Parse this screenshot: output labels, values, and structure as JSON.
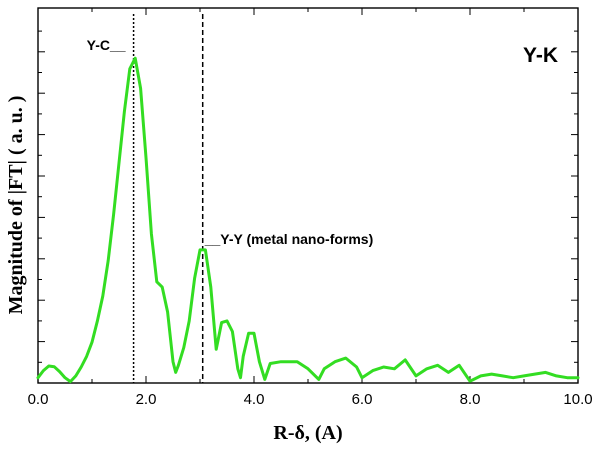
{
  "chart_data": {
    "type": "line",
    "title": "Y-K",
    "xlabel": "R-δ, (A)",
    "ylabel": "Magnitude of |FT| ( a. u. )",
    "xlim": [
      0,
      10
    ],
    "ylim": [
      0,
      1
    ],
    "x_ticks": [
      "0.0",
      "2.0",
      "4.0",
      "6.0",
      "8.0",
      "10.0"
    ],
    "y_tick_labels_shown": false,
    "grid": false,
    "series": [
      {
        "color": "#33dd22",
        "x": [
          0.0,
          0.1,
          0.2,
          0.3,
          0.4,
          0.5,
          0.6,
          0.7,
          0.8,
          0.9,
          1.0,
          1.1,
          1.2,
          1.3,
          1.4,
          1.5,
          1.6,
          1.7,
          1.8,
          1.9,
          2.0,
          2.1,
          2.2,
          2.3,
          2.4,
          2.5,
          2.55,
          2.6,
          2.7,
          2.8,
          2.9,
          3.0,
          3.1,
          3.2,
          3.3,
          3.4,
          3.5,
          3.6,
          3.7,
          3.75,
          3.8,
          3.9,
          4.0,
          4.1,
          4.2,
          4.3,
          4.5,
          4.8,
          5.0,
          5.2,
          5.3,
          5.5,
          5.7,
          5.9,
          6.0,
          6.2,
          6.4,
          6.6,
          6.8,
          7.0,
          7.2,
          7.4,
          7.6,
          7.8,
          8.0,
          8.2,
          8.4,
          8.6,
          8.8,
          9.0,
          9.2,
          9.4,
          9.6,
          9.8,
          10.0
        ],
        "y": [
          0.015,
          0.035,
          0.048,
          0.046,
          0.032,
          0.015,
          0.004,
          0.02,
          0.045,
          0.075,
          0.115,
          0.175,
          0.245,
          0.345,
          0.475,
          0.62,
          0.765,
          0.885,
          0.915,
          0.83,
          0.635,
          0.42,
          0.285,
          0.27,
          0.2,
          0.06,
          0.03,
          0.05,
          0.1,
          0.175,
          0.295,
          0.375,
          0.375,
          0.27,
          0.095,
          0.17,
          0.175,
          0.145,
          0.04,
          0.015,
          0.075,
          0.14,
          0.14,
          0.06,
          0.01,
          0.055,
          0.06,
          0.06,
          0.04,
          0.01,
          0.04,
          0.06,
          0.07,
          0.045,
          0.015,
          0.035,
          0.045,
          0.04,
          0.065,
          0.02,
          0.04,
          0.05,
          0.03,
          0.05,
          0.005,
          0.02,
          0.025,
          0.02,
          0.015,
          0.02,
          0.025,
          0.03,
          0.02,
          0.015,
          0.015
        ]
      }
    ],
    "vlines": [
      {
        "x": 1.77,
        "style": "dotted"
      },
      {
        "x": 3.05,
        "style": "dashed"
      }
    ],
    "annotations": [
      {
        "text": "Y-C__",
        "x": 1.77,
        "y": 0.915
      },
      {
        "text": "__Y-Y (metal nano-forms)",
        "x": 3.05,
        "y": 0.375
      }
    ]
  }
}
